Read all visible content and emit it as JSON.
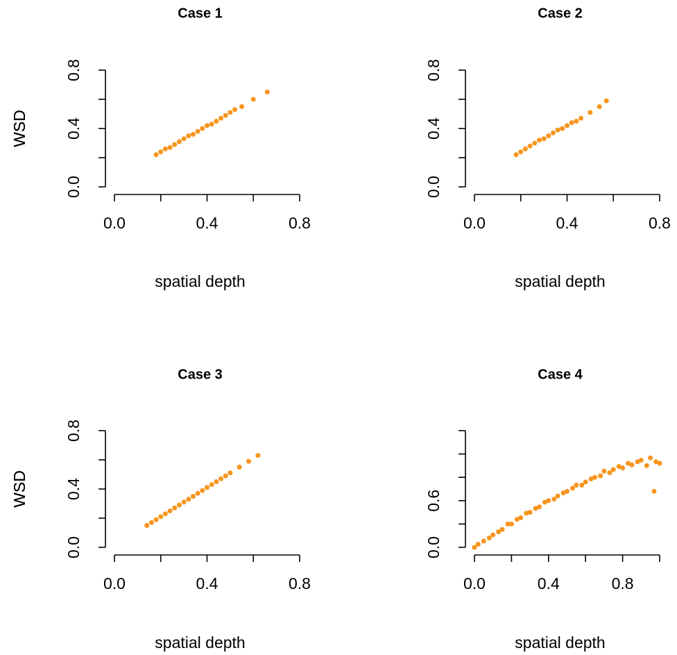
{
  "chart_data": [
    {
      "type": "scatter",
      "title": "Case 1",
      "x_label": "spatial depth",
      "y_label": "WSD",
      "color": "#f7951d",
      "xlim": [
        0,
        0.8
      ],
      "ylim": [
        0,
        0.8
      ],
      "xticks": [
        {
          "value": 0,
          "label": "0.0"
        },
        0.4,
        0.8
      ],
      "xtick_marks": [
        0.2,
        0.6
      ],
      "yticks": [
        {
          "value": 0,
          "label": "0.0"
        },
        0.4,
        0.8
      ],
      "ytick_marks": [
        0.2,
        0.6
      ],
      "x": [
        0.18,
        0.2,
        0.22,
        0.24,
        0.26,
        0.28,
        0.3,
        0.32,
        0.34,
        0.36,
        0.38,
        0.4,
        0.42,
        0.44,
        0.46,
        0.48,
        0.5,
        0.52,
        0.55,
        0.6,
        0.66
      ],
      "y": [
        0.22,
        0.24,
        0.26,
        0.27,
        0.29,
        0.31,
        0.33,
        0.35,
        0.36,
        0.38,
        0.4,
        0.42,
        0.43,
        0.45,
        0.47,
        0.49,
        0.51,
        0.53,
        0.55,
        0.6,
        0.65
      ]
    },
    {
      "type": "scatter",
      "title": "Case 2",
      "x_label": "spatial depth",
      "y_label": "WSD",
      "color": "#f7951d",
      "xlim": [
        0,
        0.8
      ],
      "ylim": [
        0,
        0.8
      ],
      "xticks": [
        {
          "value": 0,
          "label": "0.0"
        },
        0.4,
        0.8
      ],
      "xtick_marks": [
        0.2,
        0.6
      ],
      "yticks": [
        {
          "value": 0,
          "label": "0.0"
        },
        0.4,
        0.8
      ],
      "ytick_marks": [
        0.2,
        0.6
      ],
      "x": [
        0.18,
        0.2,
        0.22,
        0.24,
        0.26,
        0.28,
        0.3,
        0.32,
        0.34,
        0.36,
        0.38,
        0.4,
        0.42,
        0.44,
        0.46,
        0.5,
        0.54,
        0.57
      ],
      "y": [
        0.22,
        0.24,
        0.26,
        0.28,
        0.3,
        0.32,
        0.33,
        0.35,
        0.37,
        0.39,
        0.4,
        0.42,
        0.44,
        0.45,
        0.47,
        0.51,
        0.55,
        0.59
      ]
    },
    {
      "type": "scatter",
      "title": "Case 3",
      "x_label": "spatial depth",
      "y_label": "WSD",
      "color": "#f7951d",
      "xlim": [
        0,
        0.8
      ],
      "ylim": [
        0,
        0.8
      ],
      "xticks": [
        {
          "value": 0,
          "label": "0.0"
        },
        0.4,
        0.8
      ],
      "xtick_marks": [
        0.2,
        0.6
      ],
      "yticks": [
        {
          "value": 0,
          "label": "0.0"
        },
        0.4,
        0.8
      ],
      "ytick_marks": [
        0.2,
        0.6
      ],
      "x": [
        0.14,
        0.16,
        0.18,
        0.2,
        0.22,
        0.24,
        0.26,
        0.28,
        0.3,
        0.32,
        0.34,
        0.36,
        0.38,
        0.4,
        0.42,
        0.44,
        0.46,
        0.48,
        0.5,
        0.54,
        0.58,
        0.62
      ],
      "y": [
        0.15,
        0.17,
        0.19,
        0.21,
        0.23,
        0.25,
        0.27,
        0.29,
        0.31,
        0.33,
        0.35,
        0.37,
        0.39,
        0.41,
        0.43,
        0.45,
        0.47,
        0.49,
        0.51,
        0.55,
        0.59,
        0.63
      ]
    },
    {
      "type": "scatter",
      "title": "Case 4",
      "x_label": "spatial depth",
      "y_label": "WSD",
      "color": "#f7951d",
      "xlim": [
        0,
        1
      ],
      "ylim": [
        0,
        1.5
      ],
      "xticks": [
        {
          "value": 0,
          "label": "0.0"
        },
        0.4,
        0.8
      ],
      "xtick_marks": [
        0.2,
        0.6,
        1
      ],
      "yticks": [
        {
          "value": 0,
          "label": "0.0"
        },
        0.6
      ],
      "ytick_marks": [
        0.3,
        0.9,
        1.2,
        1.5
      ],
      "x": [
        0,
        0.02,
        0.05,
        0.08,
        0.1,
        0.13,
        0.15,
        0.18,
        0.2,
        0.23,
        0.25,
        0.28,
        0.3,
        0.33,
        0.35,
        0.38,
        0.4,
        0.43,
        0.45,
        0.48,
        0.5,
        0.53,
        0.55,
        0.58,
        0.6,
        0.63,
        0.65,
        0.68,
        0.7,
        0.73,
        0.75,
        0.78,
        0.8,
        0.83,
        0.85,
        0.88,
        0.9,
        0.93,
        0.95,
        0.98,
        1,
        0.97
      ],
      "y": [
        0,
        0.04,
        0.08,
        0.12,
        0.16,
        0.2,
        0.23,
        0.3,
        0.3,
        0.36,
        0.38,
        0.44,
        0.45,
        0.5,
        0.52,
        0.58,
        0.6,
        0.62,
        0.66,
        0.7,
        0.72,
        0.76,
        0.8,
        0.8,
        0.84,
        0.88,
        0.9,
        0.92,
        0.98,
        0.96,
        1,
        1.04,
        1.02,
        1.08,
        1.06,
        1.1,
        1.12,
        1.05,
        1.15,
        1.1,
        1.08,
        0.72
      ]
    }
  ]
}
